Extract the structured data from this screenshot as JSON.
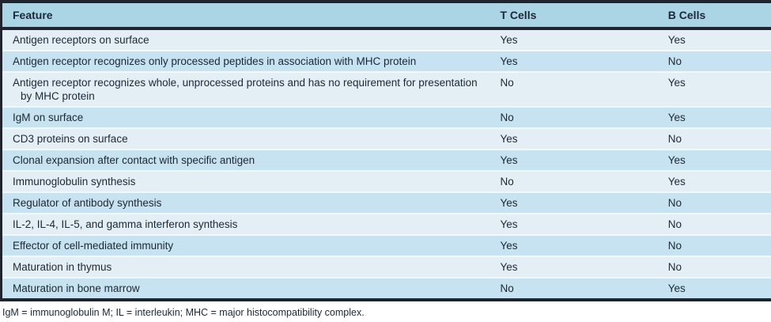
{
  "table": {
    "columns": [
      "Feature",
      "T Cells",
      "B Cells"
    ],
    "rows": [
      {
        "feature": "Antigen receptors on surface",
        "t_cells": "Yes",
        "b_cells": "Yes"
      },
      {
        "feature": "Antigen receptor recognizes only processed peptides in association with MHC protein",
        "t_cells": "Yes",
        "b_cells": "No"
      },
      {
        "feature": "Antigen receptor recognizes whole, unprocessed proteins and has no requirement for presentation by MHC protein",
        "t_cells": "No",
        "b_cells": "Yes"
      },
      {
        "feature": "IgM on surface",
        "t_cells": "No",
        "b_cells": "Yes"
      },
      {
        "feature": "CD3 proteins on surface",
        "t_cells": "Yes",
        "b_cells": "No"
      },
      {
        "feature": "Clonal expansion after contact with specific antigen",
        "t_cells": "Yes",
        "b_cells": "Yes"
      },
      {
        "feature": "Immunoglobulin synthesis",
        "t_cells": "No",
        "b_cells": "Yes"
      },
      {
        "feature": "Regulator of antibody synthesis",
        "t_cells": "Yes",
        "b_cells": "No"
      },
      {
        "feature": "IL-2, IL-4, IL-5, and gamma interferon synthesis",
        "t_cells": "Yes",
        "b_cells": "No"
      },
      {
        "feature": "Effector of cell-mediated immunity",
        "t_cells": "Yes",
        "b_cells": "No"
      },
      {
        "feature": "Maturation in thymus",
        "t_cells": "Yes",
        "b_cells": "No"
      },
      {
        "feature": "Maturation in bone marrow",
        "t_cells": "No",
        "b_cells": "Yes"
      }
    ],
    "footnote": "IgM = immunoglobulin M; IL = interleukin; MHC = major histocompatibility complex."
  },
  "colors": {
    "border_dark": "#20242f",
    "header_bg": "#abd5e5",
    "row_light": "#e3eff5",
    "row_dark": "#c7e2f0",
    "separator": "#f2f9fc",
    "text": "#1c2836"
  }
}
